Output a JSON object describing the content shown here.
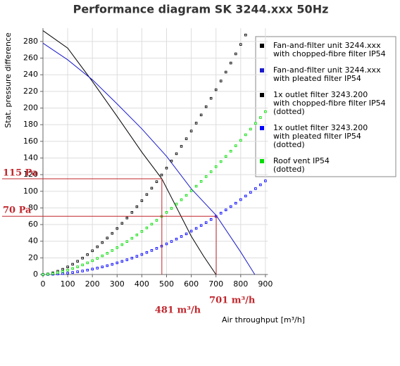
{
  "chart_data": {
    "type": "line",
    "title": "Performance diagram SK 3244.xxx 50Hz",
    "x_label": "Air throughput [m³/h]",
    "y_label": "Stat. pressure difference",
    "xlim": [
      0,
      910
    ],
    "ylim": [
      0,
      296
    ],
    "xticks": [
      0,
      100,
      200,
      300,
      400,
      500,
      600,
      700,
      800,
      900
    ],
    "yticks": [
      0,
      20,
      40,
      60,
      80,
      100,
      120,
      140,
      160,
      180,
      200,
      220,
      240,
      260,
      280
    ],
    "grid": true,
    "legend": "right",
    "series": [
      {
        "name": "Fan-and-filter unit 3244.xxx\nwith chopped-fibre filter IP54",
        "color": "#000000",
        "style": "line",
        "x": [
          0,
          100,
          200,
          300,
          400,
          481,
          550,
          600,
          650,
          700
        ],
        "values": [
          293,
          272,
          232,
          190,
          147,
          115,
          75,
          46,
          22,
          0
        ]
      },
      {
        "name": "Fan-and-filter unit 3244.xxx\nwith pleated filter IP54",
        "color": "#1a1acc",
        "style": "line",
        "x": [
          0,
          100,
          200,
          300,
          400,
          500,
          600,
          701,
          800,
          857
        ],
        "values": [
          278,
          258,
          234,
          205,
          175,
          142,
          103,
          71,
          27,
          0
        ]
      },
      {
        "name": "1x outlet filter 3243.200\nwith chopped-fibre filter IP54\n(dotted)",
        "color": "#000000",
        "style": "dotted",
        "x": [
          0,
          20,
          40,
          60,
          80,
          100,
          120,
          140,
          160,
          180,
          200,
          220,
          240,
          260,
          280,
          300,
          320,
          340,
          360,
          380,
          400,
          420,
          440,
          460,
          480,
          500,
          520,
          540,
          560,
          580,
          600,
          620,
          640,
          660,
          680,
          700,
          720,
          740,
          760,
          780,
          800,
          820
        ],
        "values": [
          0,
          0.65,
          2.0,
          3.9,
          6.3,
          9.1,
          12.3,
          15.9,
          19.7,
          23.9,
          28.5,
          33.3,
          38.4,
          43.8,
          49.4,
          55.3,
          61.5,
          67.9,
          74.6,
          81.5,
          88.7,
          96.1,
          103.7,
          111.5,
          119.6,
          127.9,
          136.4,
          145.1,
          154.0,
          163.1,
          172.4,
          181.9,
          191.7,
          201.6,
          211.7,
          222.0,
          232.5,
          243.2,
          254.1,
          265.1,
          276.4,
          287.8
        ]
      },
      {
        "name": "1x outlet filter 3243.200\nwith pleated filter IP54\n(dotted)",
        "color": "#0000ff",
        "style": "dotted",
        "x": [
          0,
          20,
          40,
          60,
          80,
          100,
          120,
          140,
          160,
          180,
          200,
          220,
          240,
          260,
          280,
          300,
          320,
          340,
          360,
          380,
          400,
          420,
          440,
          460,
          480,
          500,
          520,
          540,
          560,
          580,
          600,
          620,
          640,
          660,
          680,
          700,
          720,
          740,
          760,
          780,
          800,
          820,
          840,
          860,
          880,
          900
        ],
        "values": [
          0,
          0.08,
          0.3,
          0.7,
          1.1,
          1.7,
          2.4,
          3.3,
          4.2,
          5.3,
          6.5,
          7.7,
          9.1,
          10.6,
          12.2,
          14.0,
          15.8,
          17.7,
          19.7,
          21.9,
          24.1,
          26.5,
          28.9,
          31.4,
          34.1,
          36.8,
          39.7,
          42.6,
          45.7,
          48.8,
          52.1,
          55.4,
          58.9,
          62.4,
          66.1,
          69.8,
          73.7,
          77.6,
          81.6,
          85.7,
          90.0,
          94.3,
          98.7,
          103.2,
          107.8,
          112.5
        ]
      },
      {
        "name": "Roof vent IP54\n(dotted)",
        "color": "#00dd00",
        "style": "dotted",
        "x": [
          0,
          20,
          40,
          60,
          80,
          100,
          120,
          140,
          160,
          180,
          200,
          220,
          240,
          260,
          280,
          300,
          320,
          340,
          360,
          380,
          400,
          420,
          440,
          460,
          480,
          500,
          520,
          540,
          560,
          580,
          600,
          620,
          640,
          660,
          680,
          700,
          720,
          740,
          760,
          780,
          800,
          820,
          840,
          860,
          880,
          900
        ],
        "values": [
          0,
          0.4,
          1.2,
          2.3,
          3.7,
          5.3,
          7.2,
          9.2,
          11.5,
          14.0,
          16.6,
          19.4,
          22.4,
          25.5,
          28.8,
          32.3,
          35.9,
          39.6,
          43.5,
          47.6,
          51.7,
          56.0,
          60.5,
          65.1,
          69.8,
          74.6,
          79.5,
          84.6,
          89.8,
          95.1,
          100.6,
          106.1,
          111.8,
          117.6,
          123.5,
          129.5,
          135.7,
          141.9,
          148.2,
          154.7,
          161.2,
          167.9,
          174.7,
          181.6,
          188.6,
          195.7
        ]
      }
    ],
    "reference_color": "#c0272d",
    "reference_points": [
      {
        "x": 481,
        "y": 115,
        "x_label": "481 m³/h",
        "y_label": "115 Pa"
      },
      {
        "x": 701,
        "y": 70,
        "x_label": "701 m³/h",
        "y_label": "70 Pa"
      }
    ]
  }
}
